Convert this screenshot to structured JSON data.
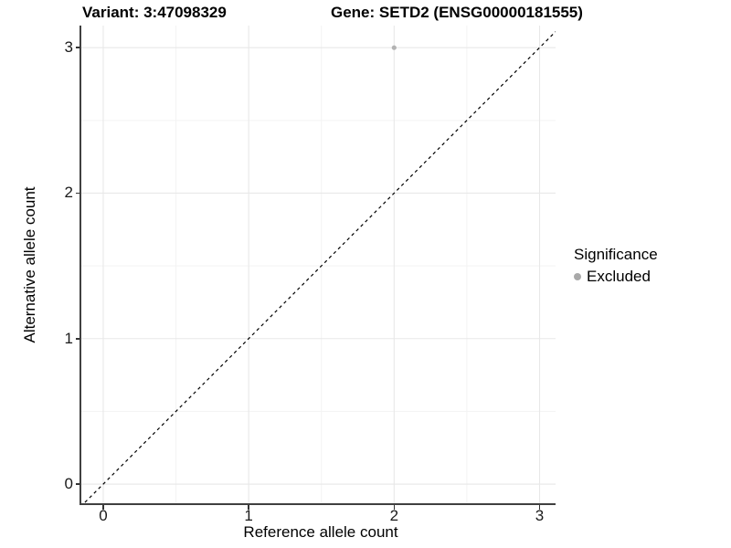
{
  "titles": {
    "variant": "Variant: 3:47098329",
    "gene": "Gene: SETD2 (ENSG00000181555)"
  },
  "chart_data": {
    "type": "scatter",
    "title": "Variant: 3:47098329 — Gene: SETD2 (ENSG00000181555)",
    "xlabel": "Reference allele count",
    "ylabel": "Alternative allele count",
    "xlim": [
      -0.157,
      3.11
    ],
    "ylim": [
      -0.138,
      3.152
    ],
    "xticks": [
      0,
      1,
      2,
      3
    ],
    "yticks": [
      0,
      1,
      2,
      3
    ],
    "minor_xticks": [
      0.5,
      1.5,
      2.5
    ],
    "minor_yticks": [
      0.5,
      1.5,
      2.5
    ],
    "grid": true,
    "identity_line": {
      "slope": 1,
      "intercept": 0,
      "style": "dashed",
      "color": "#000000"
    },
    "series": [
      {
        "name": "Excluded",
        "color": "#b3b3b3",
        "points": [
          {
            "x": 2,
            "y": 3
          }
        ]
      }
    ],
    "legend": {
      "title": "Significance",
      "position": "right",
      "items": [
        {
          "label": "Excluded",
          "color": "#a9a9a9"
        }
      ]
    }
  },
  "colors": {
    "background": "#ffffff",
    "grid_major": "#e8e8e8",
    "grid_minor": "#f3f3f3",
    "axis_line": "#404040",
    "text": "#000000"
  }
}
